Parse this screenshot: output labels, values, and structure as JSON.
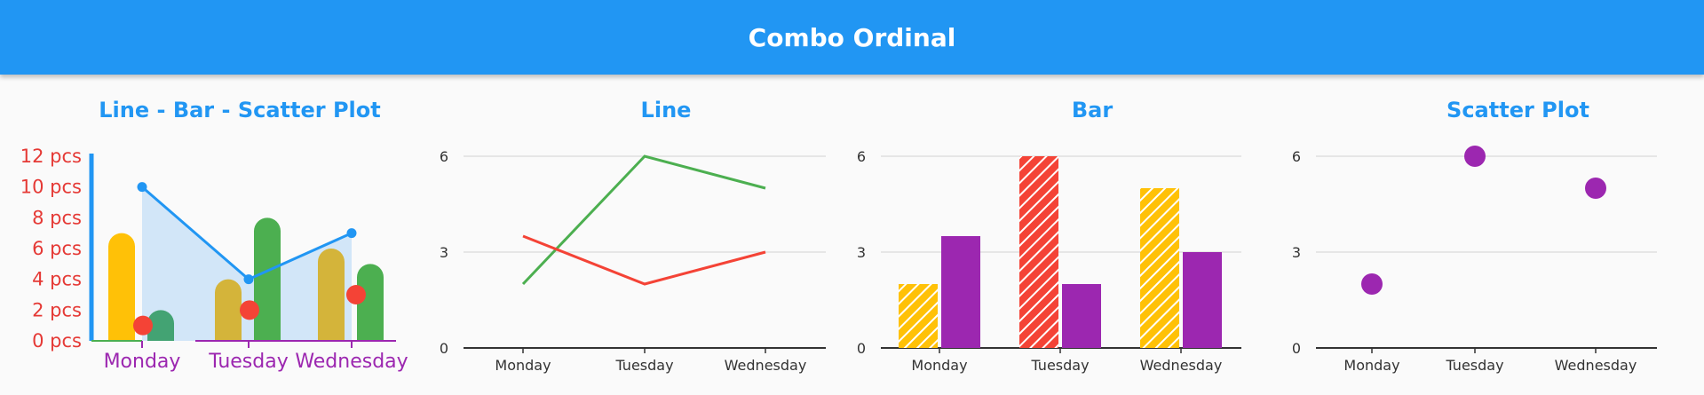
{
  "app_title": "Combo Ordinal",
  "colors": {
    "primary": "#2196f3",
    "red": "#f44336",
    "green": "#4caf50",
    "purple": "#9c27b0",
    "yellow": "#ffc107",
    "olive": "#d4b43a",
    "teal_green": "#43a373",
    "area": "#d2e6f8"
  },
  "chart_data": [
    {
      "type": "combo",
      "title": "Line - Bar - Scatter Plot",
      "categories": [
        "Monday",
        "Tuesday",
        "Wednesday"
      ],
      "y_ticks": [
        "0 pcs",
        "2 pcs",
        "4 pcs",
        "6 pcs",
        "8 pcs",
        "10 pcs",
        "12 pcs"
      ],
      "ylim": [
        0,
        12
      ],
      "line_area": [
        10,
        4,
        7
      ],
      "bars": [
        {
          "values": [
            7,
            4,
            6
          ]
        },
        {
          "values": [
            2,
            8,
            5
          ]
        }
      ],
      "scatter": [
        1,
        2,
        3
      ]
    },
    {
      "type": "line",
      "title": "Line",
      "categories": [
        "Monday",
        "Tuesday",
        "Wednesday"
      ],
      "y_ticks": [
        "0",
        "3",
        "6"
      ],
      "ylim": [
        0,
        6
      ],
      "series": [
        {
          "values": [
            2,
            6,
            5
          ],
          "color": "#4caf50"
        },
        {
          "values": [
            3.5,
            2,
            3
          ],
          "color": "#f44336"
        }
      ]
    },
    {
      "type": "bar",
      "title": "Bar",
      "categories": [
        "Monday",
        "Tuesday",
        "Wednesday"
      ],
      "y_ticks": [
        "0",
        "3",
        "6"
      ],
      "ylim": [
        0,
        6
      ],
      "series": [
        {
          "values": [
            2,
            6,
            5
          ],
          "colors": [
            "#ffc107",
            "#f44336",
            "#ffc107"
          ],
          "pattern": "hatch"
        },
        {
          "values": [
            3.5,
            2,
            3
          ],
          "colors": [
            "#9c27b0",
            "#9c27b0",
            "#9c27b0"
          ],
          "pattern": "solid"
        }
      ]
    },
    {
      "type": "scatter",
      "title": "Scatter Plot",
      "categories": [
        "Monday",
        "Tuesday",
        "Wednesday"
      ],
      "y_ticks": [
        "0",
        "3",
        "6"
      ],
      "ylim": [
        0,
        6
      ],
      "values": [
        2,
        6,
        5
      ],
      "color": "#9c27b0"
    }
  ]
}
